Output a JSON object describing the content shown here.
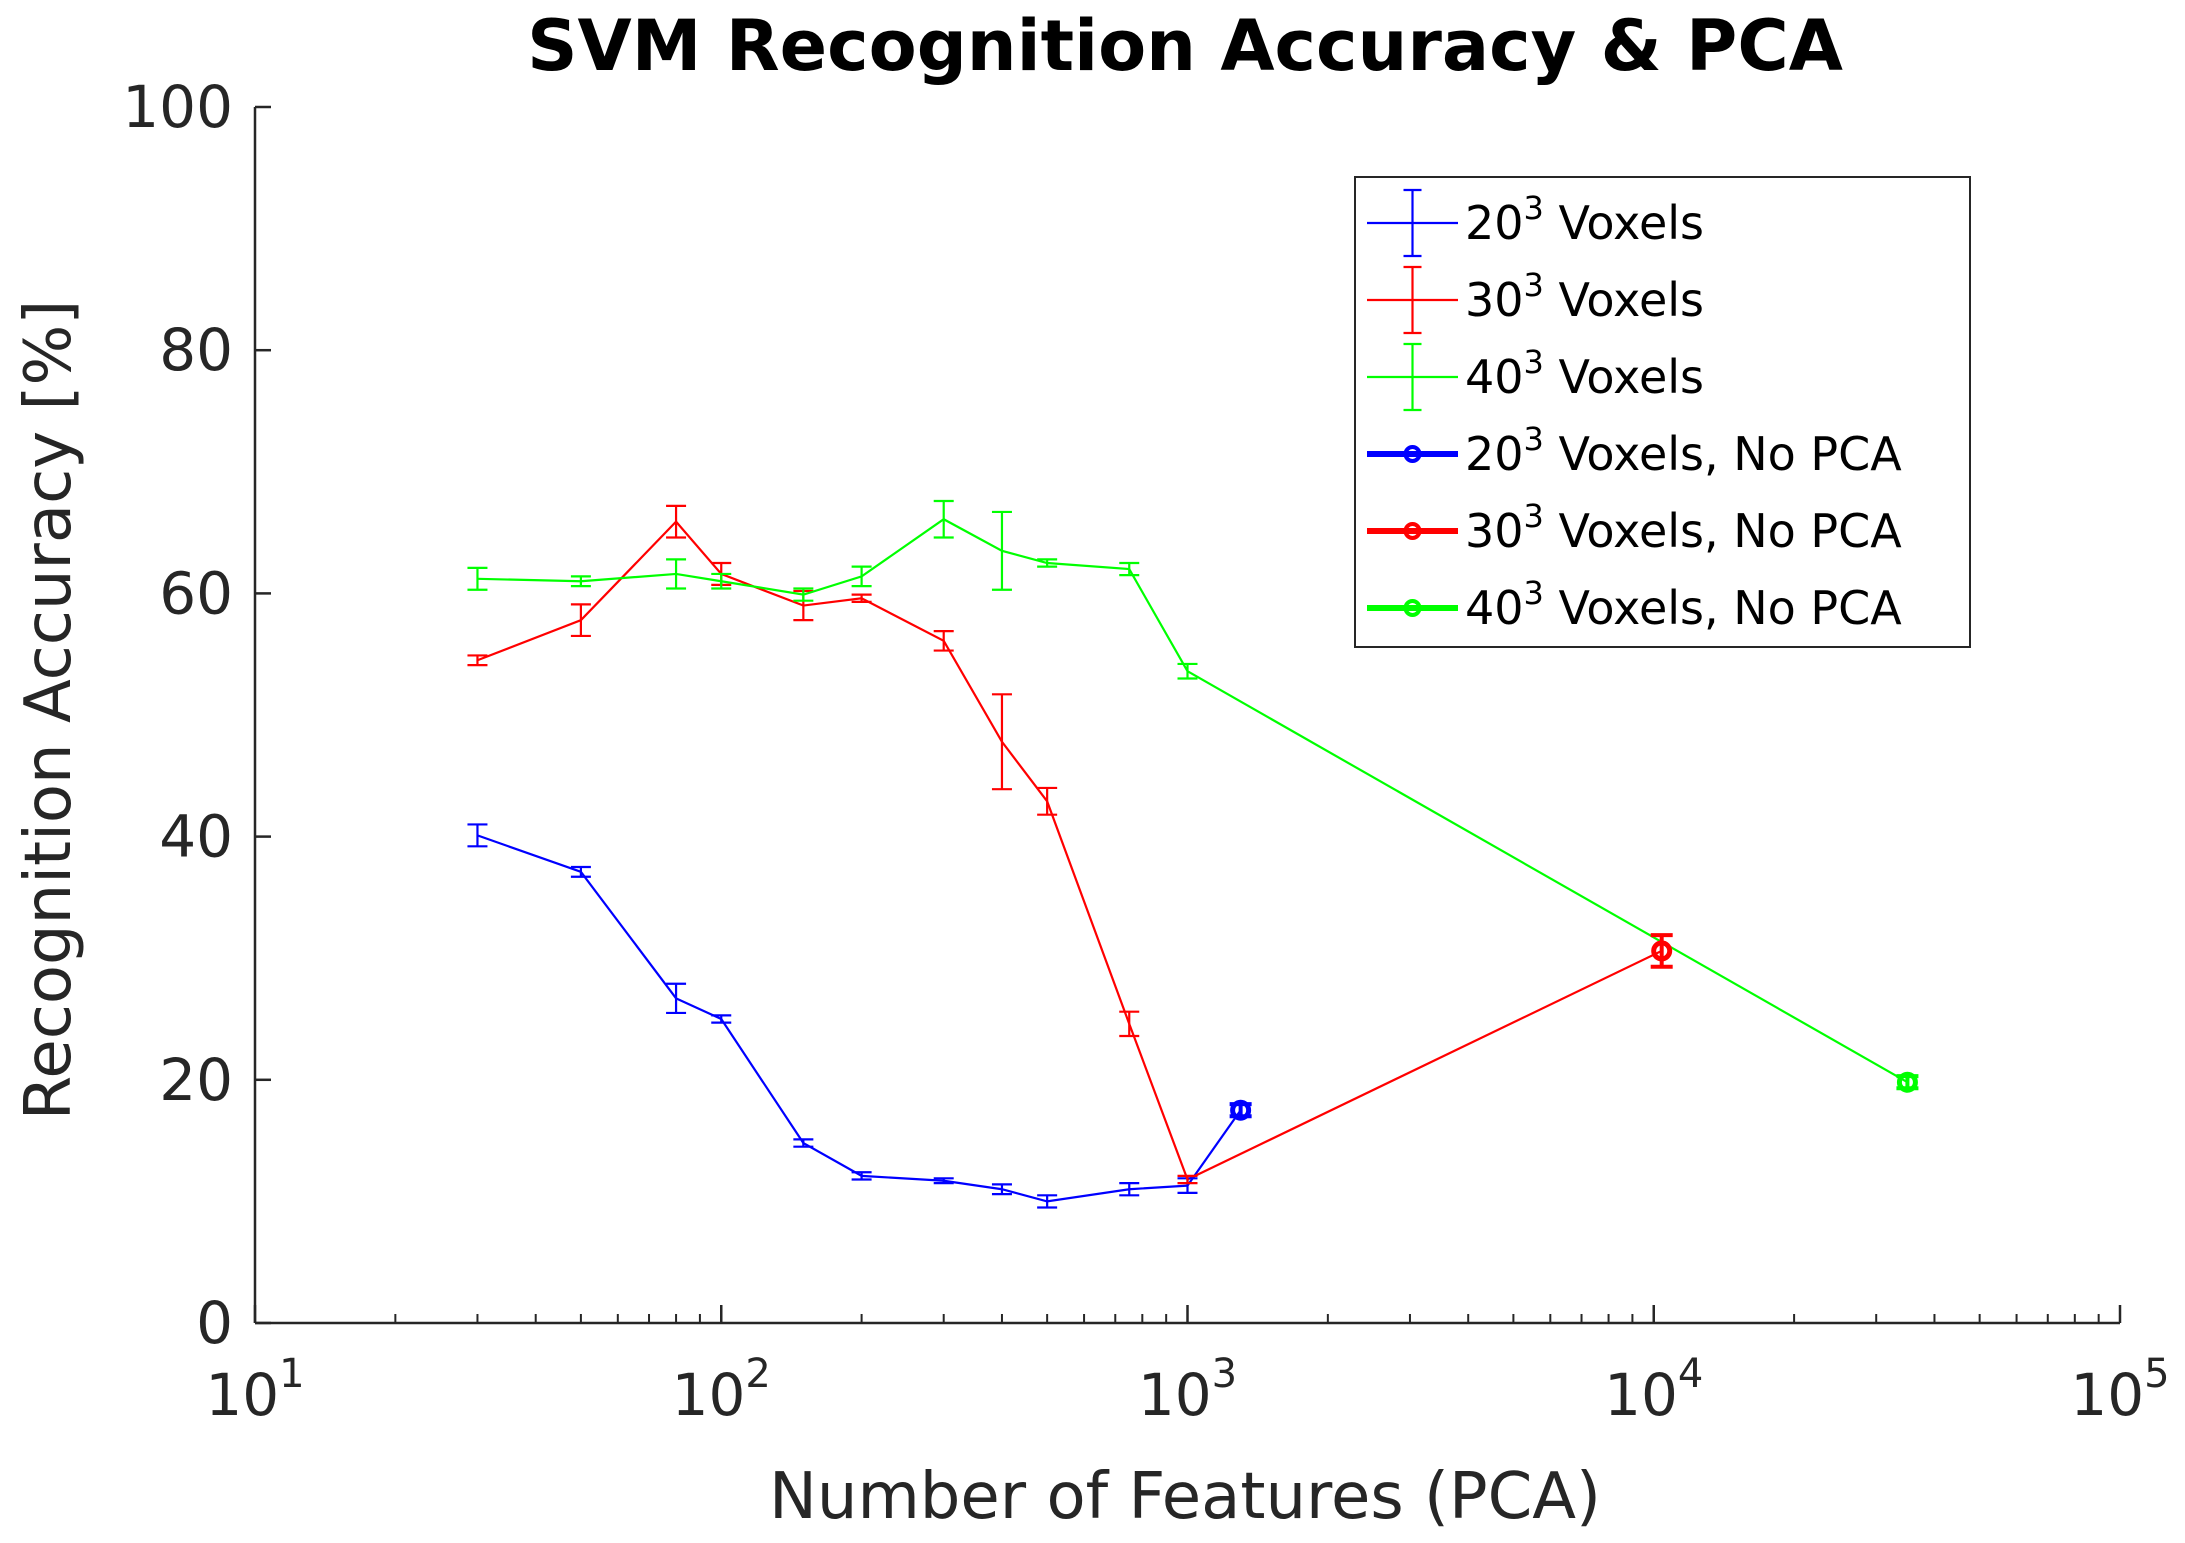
{
  "chart_data": {
    "type": "line",
    "title": "SVM Recognition Accuracy & PCA",
    "xlabel": "Number of Features (PCA)",
    "ylabel": "Recognition Accuracy [%]",
    "xscale": "log",
    "xlim": [
      10,
      100000
    ],
    "ylim": [
      0,
      100
    ],
    "xticks": [
      {
        "value": 10,
        "base": "10",
        "exp": "1"
      },
      {
        "value": 100,
        "base": "10",
        "exp": "2"
      },
      {
        "value": 1000,
        "base": "10",
        "exp": "3"
      },
      {
        "value": 10000,
        "base": "10",
        "exp": "4"
      },
      {
        "value": 100000,
        "base": "10",
        "exp": "5"
      }
    ],
    "yticks": [
      {
        "value": 0,
        "label": "0"
      },
      {
        "value": 20,
        "label": "20"
      },
      {
        "value": 40,
        "label": "40"
      },
      {
        "value": 60,
        "label": "60"
      },
      {
        "value": 80,
        "label": "80"
      },
      {
        "value": 100,
        "label": "100"
      }
    ],
    "legend_position": "top-right",
    "series": [
      {
        "name": "20 Voxels",
        "base": "20",
        "sup": "3",
        "suffix": " Voxels",
        "color": "#0000ff",
        "style": "pca",
        "x": [
          30,
          50,
          80,
          100,
          150,
          200,
          300,
          400,
          500,
          750,
          1000
        ],
        "y": [
          40.1,
          37.1,
          26.7,
          25.0,
          14.8,
          12.1,
          11.7,
          11.0,
          10.0,
          11.0,
          11.3
        ],
        "err": [
          0.9,
          0.4,
          1.2,
          0.3,
          0.3,
          0.3,
          0.2,
          0.4,
          0.5,
          0.5,
          0.6
        ]
      },
      {
        "name": "30 Voxels",
        "base": "30",
        "sup": "3",
        "suffix": " Voxels",
        "color": "#ff0000",
        "style": "pca",
        "x": [
          30,
          50,
          80,
          100,
          150,
          200,
          300,
          400,
          500,
          750,
          1000
        ],
        "y": [
          54.5,
          57.8,
          65.9,
          61.6,
          59.0,
          59.6,
          56.1,
          47.8,
          42.9,
          24.6,
          11.8
        ],
        "err": [
          0.4,
          1.3,
          1.3,
          0.9,
          1.2,
          0.3,
          0.8,
          3.9,
          1.1,
          1.0,
          0.3
        ]
      },
      {
        "name": "40 Voxels",
        "base": "40",
        "sup": "3",
        "suffix": " Voxels",
        "color": "#00ff00",
        "style": "pca",
        "x": [
          30,
          50,
          80,
          100,
          150,
          200,
          300,
          400,
          500,
          750,
          1000
        ],
        "y": [
          61.2,
          61.0,
          61.6,
          61.0,
          59.9,
          61.4,
          66.1,
          63.5,
          62.5,
          62.0,
          53.6
        ],
        "err": [
          0.9,
          0.4,
          1.2,
          0.6,
          0.5,
          0.8,
          1.5,
          3.2,
          0.3,
          0.5,
          0.6
        ]
      },
      {
        "name": "20 Voxels, No PCA",
        "base": "20",
        "sup": "3",
        "suffix": " Voxels, No PCA",
        "color": "#0000ff",
        "style": "nopca",
        "x": [
          1300
        ],
        "y": [
          17.5
        ],
        "err": [
          0.5
        ],
        "connect_from": {
          "x": 1000,
          "y": 11.3
        }
      },
      {
        "name": "30 Voxels, No PCA",
        "base": "30",
        "sup": "3",
        "suffix": " Voxels, No PCA",
        "color": "#ff0000",
        "style": "nopca",
        "x": [
          10400
        ],
        "y": [
          30.6
        ],
        "err": [
          1.3
        ],
        "connect_from": {
          "x": 1000,
          "y": 11.8
        }
      },
      {
        "name": "40 Voxels, No PCA",
        "base": "40",
        "sup": "3",
        "suffix": " Voxels, No PCA",
        "color": "#00ff00",
        "style": "nopca",
        "x": [
          35000
        ],
        "y": [
          19.8
        ],
        "err": [
          0.5
        ],
        "connect_from": {
          "x": 1000,
          "y": 53.6
        }
      }
    ]
  }
}
